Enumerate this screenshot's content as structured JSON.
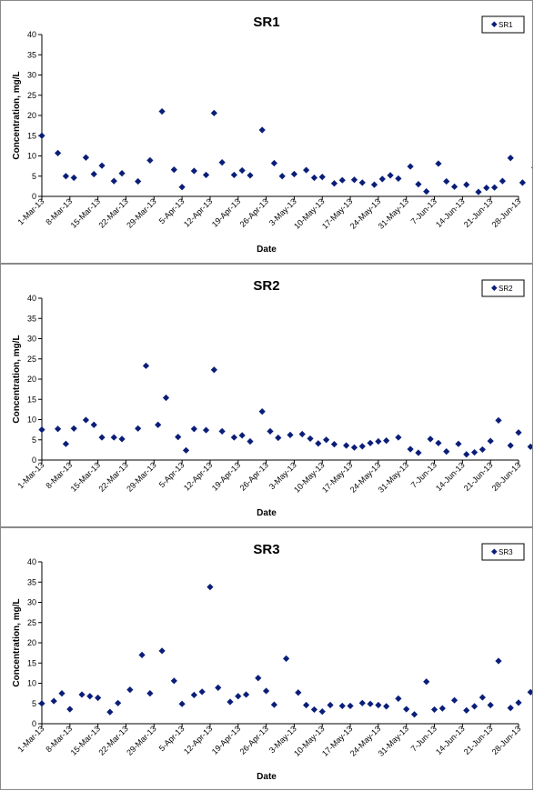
{
  "chart_data": [
    {
      "type": "scatter",
      "title": "SR1",
      "xlabel": "Date",
      "ylabel": "Concentration, mg/L",
      "legend": "SR1",
      "legend_position": "top-right",
      "ylim": [
        0,
        40
      ],
      "yticks": [
        "0",
        "5",
        "10",
        "15",
        "20",
        "25",
        "30",
        "35",
        "40"
      ],
      "xlim": [
        "2013-03-01",
        "2013-06-28"
      ],
      "xticks": [
        "1-Mar-13",
        "8-Mar-13",
        "15-Mar-13",
        "22-Mar-13",
        "29-Mar-13",
        "5-Apr-13",
        "12-Apr-13",
        "19-Apr-13",
        "26-Apr-13",
        "3-May-13",
        "10-May-13",
        "17-May-13",
        "24-May-13",
        "31-May-13",
        "7-Jun-13",
        "14-Jun-13",
        "21-Jun-13",
        "28-Jun-13"
      ],
      "grid": false,
      "color": "#0a1e78",
      "series": [
        {
          "name": "SR1",
          "points": [
            {
              "x": "2013-03-01",
              "y": 15
            },
            {
              "x": "2013-03-05",
              "y": 10.7
            },
            {
              "x": "2013-03-07",
              "y": 5
            },
            {
              "x": "2013-03-09",
              "y": 4.6
            },
            {
              "x": "2013-03-12",
              "y": 9.6
            },
            {
              "x": "2013-03-14",
              "y": 5.5
            },
            {
              "x": "2013-03-16",
              "y": 7.6
            },
            {
              "x": "2013-03-19",
              "y": 3.8
            },
            {
              "x": "2013-03-21",
              "y": 5.7
            },
            {
              "x": "2013-03-25",
              "y": 3.7
            },
            {
              "x": "2013-03-28",
              "y": 8.9
            },
            {
              "x": "2013-03-31",
              "y": 21
            },
            {
              "x": "2013-04-03",
              "y": 6.6
            },
            {
              "x": "2013-04-05",
              "y": 2.3
            },
            {
              "x": "2013-04-08",
              "y": 6.3
            },
            {
              "x": "2013-04-11",
              "y": 5.3
            },
            {
              "x": "2013-04-13",
              "y": 20.6
            },
            {
              "x": "2013-04-15",
              "y": 8.4
            },
            {
              "x": "2013-04-18",
              "y": 5.3
            },
            {
              "x": "2013-04-20",
              "y": 6.4
            },
            {
              "x": "2013-04-22",
              "y": 5.2
            },
            {
              "x": "2013-04-25",
              "y": 16.4
            },
            {
              "x": "2013-04-28",
              "y": 8.2
            },
            {
              "x": "2013-04-30",
              "y": 5
            },
            {
              "x": "2013-05-03",
              "y": 5.5
            },
            {
              "x": "2013-05-06",
              "y": 6.5
            },
            {
              "x": "2013-05-08",
              "y": 4.6
            },
            {
              "x": "2013-05-10",
              "y": 4.8
            },
            {
              "x": "2013-05-13",
              "y": 3.2
            },
            {
              "x": "2013-05-15",
              "y": 4
            },
            {
              "x": "2013-05-18",
              "y": 4.1
            },
            {
              "x": "2013-05-20",
              "y": 3.4
            },
            {
              "x": "2013-05-23",
              "y": 2.9
            },
            {
              "x": "2013-05-25",
              "y": 4.3
            },
            {
              "x": "2013-05-27",
              "y": 5.2
            },
            {
              "x": "2013-05-29",
              "y": 4.4
            },
            {
              "x": "2013-06-01",
              "y": 7.4
            },
            {
              "x": "2013-06-03",
              "y": 3
            },
            {
              "x": "2013-06-05",
              "y": 1.2
            },
            {
              "x": "2013-06-08",
              "y": 8.1
            },
            {
              "x": "2013-06-10",
              "y": 3.7
            },
            {
              "x": "2013-06-12",
              "y": 2.4
            },
            {
              "x": "2013-06-15",
              "y": 2.9
            },
            {
              "x": "2013-06-18",
              "y": 1.1
            },
            {
              "x": "2013-06-20",
              "y": 2.1
            },
            {
              "x": "2013-06-22",
              "y": 2.2
            },
            {
              "x": "2013-06-24",
              "y": 3.8
            },
            {
              "x": "2013-06-26",
              "y": 9.5
            },
            {
              "x": "2013-06-29",
              "y": 3.4
            },
            {
              "x": "2013-07-02",
              "y": 7.1
            },
            {
              "x": "2013-07-04",
              "y": 1.8
            }
          ]
        }
      ]
    },
    {
      "type": "scatter",
      "title": "SR2",
      "xlabel": "Date",
      "ylabel": "Concentration, mg/L",
      "legend": "SR2",
      "legend_position": "top-right",
      "ylim": [
        0,
        40
      ],
      "yticks": [
        "0",
        "5",
        "10",
        "15",
        "20",
        "25",
        "30",
        "35",
        "40"
      ],
      "xlim": [
        "2013-03-01",
        "2013-06-28"
      ],
      "xticks": [
        "1-Mar-13",
        "8-Mar-13",
        "15-Mar-13",
        "22-Mar-13",
        "29-Mar-13",
        "5-Apr-13",
        "12-Apr-13",
        "19-Apr-13",
        "26-Apr-13",
        "3-May-13",
        "10-May-13",
        "17-May-13",
        "24-May-13",
        "31-May-13",
        "7-Jun-13",
        "14-Jun-13",
        "21-Jun-13",
        "28-Jun-13"
      ],
      "grid": false,
      "color": "#0a1e78",
      "series": [
        {
          "name": "SR2",
          "points": [
            {
              "x": "2013-03-01",
              "y": 7.5
            },
            {
              "x": "2013-03-05",
              "y": 7.7
            },
            {
              "x": "2013-03-07",
              "y": 4
            },
            {
              "x": "2013-03-09",
              "y": 7.8
            },
            {
              "x": "2013-03-12",
              "y": 9.9
            },
            {
              "x": "2013-03-14",
              "y": 8.7
            },
            {
              "x": "2013-03-16",
              "y": 5.6
            },
            {
              "x": "2013-03-19",
              "y": 5.6
            },
            {
              "x": "2013-03-21",
              "y": 5.2
            },
            {
              "x": "2013-03-25",
              "y": 7.8
            },
            {
              "x": "2013-03-27",
              "y": 23.3
            },
            {
              "x": "2013-03-30",
              "y": 8.7
            },
            {
              "x": "2013-04-01",
              "y": 15.4
            },
            {
              "x": "2013-04-04",
              "y": 5.7
            },
            {
              "x": "2013-04-06",
              "y": 2.4
            },
            {
              "x": "2013-04-08",
              "y": 7.7
            },
            {
              "x": "2013-04-11",
              "y": 7.4
            },
            {
              "x": "2013-04-13",
              "y": 22.3
            },
            {
              "x": "2013-04-15",
              "y": 7.1
            },
            {
              "x": "2013-04-18",
              "y": 5.6
            },
            {
              "x": "2013-04-20",
              "y": 6.1
            },
            {
              "x": "2013-04-22",
              "y": 4.6
            },
            {
              "x": "2013-04-25",
              "y": 12
            },
            {
              "x": "2013-04-27",
              "y": 7.1
            },
            {
              "x": "2013-04-29",
              "y": 5.5
            },
            {
              "x": "2013-05-02",
              "y": 6.2
            },
            {
              "x": "2013-05-05",
              "y": 6.4
            },
            {
              "x": "2013-05-07",
              "y": 5.3
            },
            {
              "x": "2013-05-09",
              "y": 4.1
            },
            {
              "x": "2013-05-11",
              "y": 5
            },
            {
              "x": "2013-05-13",
              "y": 3.9
            },
            {
              "x": "2013-05-16",
              "y": 3.6
            },
            {
              "x": "2013-05-18",
              "y": 3.1
            },
            {
              "x": "2013-05-20",
              "y": 3.4
            },
            {
              "x": "2013-05-22",
              "y": 4.2
            },
            {
              "x": "2013-05-24",
              "y": 4.6
            },
            {
              "x": "2013-05-26",
              "y": 4.8
            },
            {
              "x": "2013-05-29",
              "y": 5.6
            },
            {
              "x": "2013-06-01",
              "y": 2.7
            },
            {
              "x": "2013-06-03",
              "y": 1.8
            },
            {
              "x": "2013-06-06",
              "y": 5.2
            },
            {
              "x": "2013-06-08",
              "y": 4.2
            },
            {
              "x": "2013-06-10",
              "y": 2.1
            },
            {
              "x": "2013-06-13",
              "y": 4
            },
            {
              "x": "2013-06-15",
              "y": 1.4
            },
            {
              "x": "2013-06-17",
              "y": 1.9
            },
            {
              "x": "2013-06-19",
              "y": 2.6
            },
            {
              "x": "2013-06-21",
              "y": 4.7
            },
            {
              "x": "2013-06-23",
              "y": 9.8
            },
            {
              "x": "2013-06-26",
              "y": 3.6
            },
            {
              "x": "2013-06-28",
              "y": 6.8
            },
            {
              "x": "2013-07-01",
              "y": 3.3
            }
          ]
        }
      ]
    },
    {
      "type": "scatter",
      "title": "SR3",
      "xlabel": "Date",
      "ylabel": "Concentration, mg/L",
      "legend": "SR3",
      "legend_position": "top-right",
      "ylim": [
        0,
        40
      ],
      "yticks": [
        "0",
        "5",
        "10",
        "15",
        "20",
        "25",
        "30",
        "35",
        "40"
      ],
      "xlim": [
        "2013-03-01",
        "2013-06-28"
      ],
      "xticks": [
        "1-Mar-13",
        "8-Mar-13",
        "15-Mar-13",
        "22-Mar-13",
        "29-Mar-13",
        "5-Apr-13",
        "12-Apr-13",
        "19-Apr-13",
        "26-Apr-13",
        "3-May-13",
        "10-May-13",
        "17-May-13",
        "24-May-13",
        "31-May-13",
        "7-Jun-13",
        "14-Jun-13",
        "21-Jun-13",
        "28-Jun-13"
      ],
      "grid": false,
      "color": "#0a1e78",
      "series": [
        {
          "name": "SR3",
          "points": [
            {
              "x": "2013-03-01",
              "y": 5
            },
            {
              "x": "2013-03-04",
              "y": 5.6
            },
            {
              "x": "2013-03-06",
              "y": 7.5
            },
            {
              "x": "2013-03-08",
              "y": 3.6
            },
            {
              "x": "2013-03-11",
              "y": 7.2
            },
            {
              "x": "2013-03-13",
              "y": 6.8
            },
            {
              "x": "2013-03-15",
              "y": 6.4
            },
            {
              "x": "2013-03-18",
              "y": 2.9
            },
            {
              "x": "2013-03-20",
              "y": 5.1
            },
            {
              "x": "2013-03-23",
              "y": 8.4
            },
            {
              "x": "2013-03-26",
              "y": 17
            },
            {
              "x": "2013-03-28",
              "y": 7.5
            },
            {
              "x": "2013-03-31",
              "y": 18
            },
            {
              "x": "2013-04-03",
              "y": 10.6
            },
            {
              "x": "2013-04-05",
              "y": 4.9
            },
            {
              "x": "2013-04-08",
              "y": 7.1
            },
            {
              "x": "2013-04-10",
              "y": 7.9
            },
            {
              "x": "2013-04-12",
              "y": 33.8
            },
            {
              "x": "2013-04-14",
              "y": 8.9
            },
            {
              "x": "2013-04-17",
              "y": 5.4
            },
            {
              "x": "2013-04-19",
              "y": 6.8
            },
            {
              "x": "2013-04-21",
              "y": 7.2
            },
            {
              "x": "2013-04-24",
              "y": 11.3
            },
            {
              "x": "2013-04-26",
              "y": 8.1
            },
            {
              "x": "2013-04-28",
              "y": 4.7
            },
            {
              "x": "2013-05-01",
              "y": 16.1
            },
            {
              "x": "2013-05-04",
              "y": 7.7
            },
            {
              "x": "2013-05-06",
              "y": 4.6
            },
            {
              "x": "2013-05-08",
              "y": 3.5
            },
            {
              "x": "2013-05-10",
              "y": 3
            },
            {
              "x": "2013-05-12",
              "y": 4.6
            },
            {
              "x": "2013-05-15",
              "y": 4.4
            },
            {
              "x": "2013-05-17",
              "y": 4.4
            },
            {
              "x": "2013-05-20",
              "y": 5.1
            },
            {
              "x": "2013-05-22",
              "y": 4.9
            },
            {
              "x": "2013-05-24",
              "y": 4.6
            },
            {
              "x": "2013-05-26",
              "y": 4.3
            },
            {
              "x": "2013-05-29",
              "y": 6.2
            },
            {
              "x": "2013-05-31",
              "y": 3.6
            },
            {
              "x": "2013-06-02",
              "y": 2.3
            },
            {
              "x": "2013-06-05",
              "y": 10.4
            },
            {
              "x": "2013-06-07",
              "y": 3.5
            },
            {
              "x": "2013-06-09",
              "y": 3.8
            },
            {
              "x": "2013-06-12",
              "y": 5.8
            },
            {
              "x": "2013-06-15",
              "y": 3.3
            },
            {
              "x": "2013-06-17",
              "y": 4.3
            },
            {
              "x": "2013-06-19",
              "y": 6.5
            },
            {
              "x": "2013-06-21",
              "y": 4.6
            },
            {
              "x": "2013-06-23",
              "y": 15.5
            },
            {
              "x": "2013-06-26",
              "y": 3.9
            },
            {
              "x": "2013-06-28",
              "y": 5.2
            },
            {
              "x": "2013-07-01",
              "y": 7.8
            }
          ]
        }
      ]
    }
  ]
}
